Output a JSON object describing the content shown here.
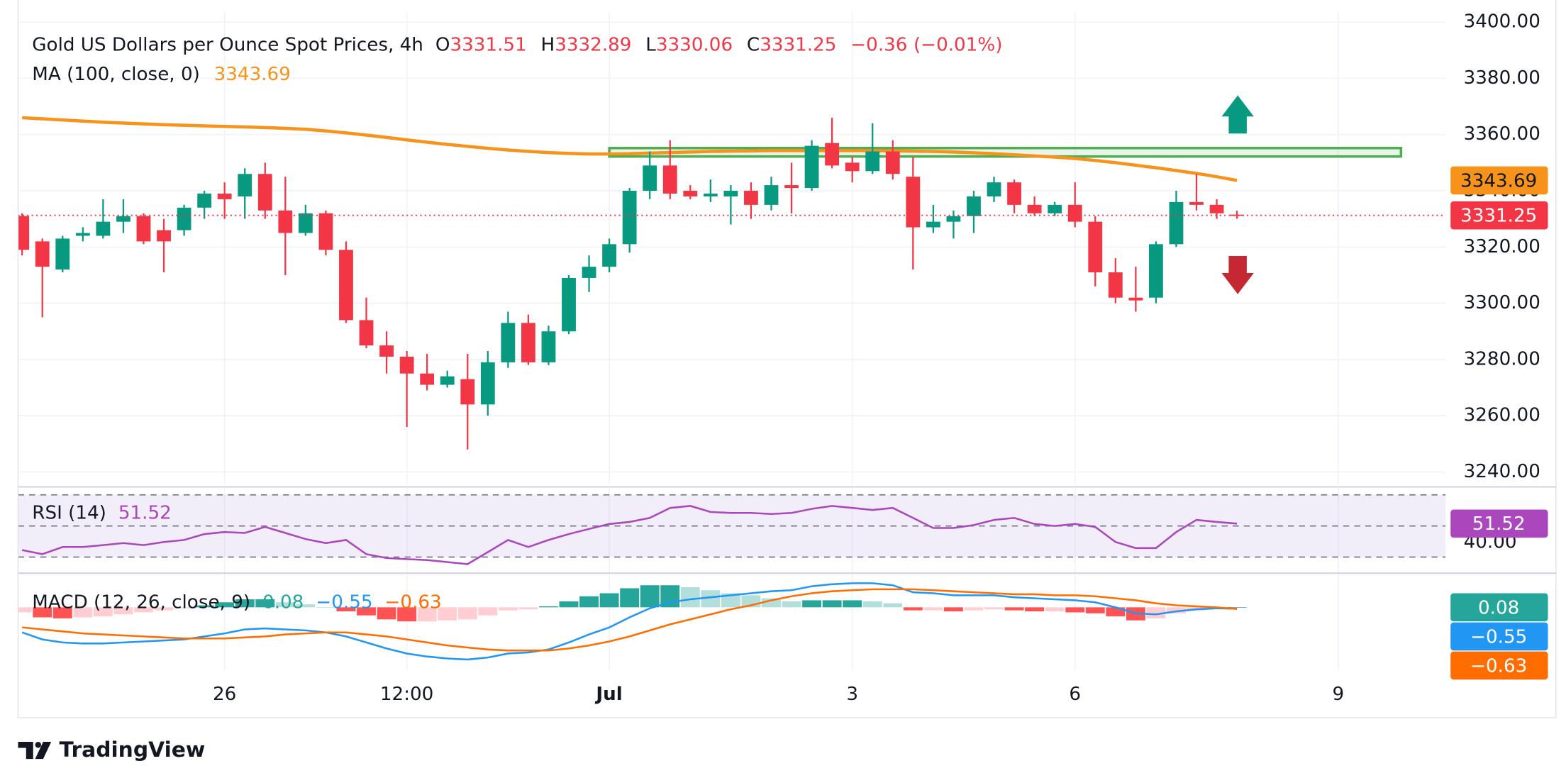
{
  "chart_data": [
    {
      "type": "candlestick",
      "title": "Gold US Dollars per Ounce Spot Prices, 4h",
      "ohlc_letters": [
        "O",
        "H",
        "L",
        "C"
      ],
      "change": {
        "value": -0.36,
        "label": "−0.36"
      },
      "change_percent": {
        "value": -0.01,
        "label": "(−0.01%)"
      },
      "xlim": [
        -0.2,
        70.3
      ],
      "xticks": [
        {
          "value": 10,
          "label": "26"
        },
        {
          "value": 19,
          "label": "12:00"
        },
        {
          "value": 29,
          "label": "Jul",
          "bold": true
        },
        {
          "value": 41,
          "label": "3"
        },
        {
          "value": 52,
          "label": "6"
        },
        {
          "value": 65,
          "label": "9"
        }
      ],
      "ylim": [
        3235.4,
        3402.5
      ],
      "yticks": [
        {
          "value": 3240,
          "label": "3240.00"
        },
        {
          "value": 3260,
          "label": "3260.00"
        },
        {
          "value": 3280,
          "label": "3280.00"
        },
        {
          "value": 3300,
          "label": "3300.00"
        },
        {
          "value": 3320,
          "label": "3320.00"
        },
        {
          "value": 3340,
          "label": "3340.00"
        },
        {
          "value": 3360,
          "label": "3360.00"
        },
        {
          "value": 3380,
          "label": "3380.00"
        },
        {
          "value": 3400,
          "label": "3400.00"
        }
      ],
      "grid": true,
      "candles": {
        "up_color": "#089981",
        "down_color": "#f23645",
        "open": [
          3331,
          3322,
          3312,
          3324,
          3324,
          3329,
          3331,
          3326,
          3326,
          3334,
          3339,
          3338,
          3346,
          3333,
          3325,
          3332,
          3319,
          3294,
          3285,
          3281,
          3275,
          3271,
          3273,
          3264,
          3279,
          3293,
          3279,
          3290,
          3309,
          3313,
          3321,
          3340,
          3349,
          3340,
          3338,
          3338,
          3340,
          3335,
          3342,
          3341,
          3357,
          3350,
          3347,
          3354,
          3345,
          3327,
          3329,
          3331,
          3338,
          3343,
          3335,
          3332,
          3335,
          3329,
          3311,
          3302,
          3302,
          3321,
          3336,
          3335,
          3331.51
        ],
        "high": [
          3332,
          3323,
          3324,
          3327,
          3337,
          3337,
          3332,
          3330,
          3335,
          3340,
          3343,
          3348,
          3350,
          3345,
          3335,
          3333,
          3322,
          3302,
          3290,
          3283,
          3282,
          3276,
          3282,
          3283,
          3297,
          3296,
          3292,
          3310,
          3317,
          3323,
          3341,
          3354,
          3358,
          3342,
          3344,
          3342,
          3343,
          3345,
          3350,
          3358,
          3366,
          3352,
          3364,
          3358,
          3352,
          3335,
          3333,
          3340,
          3345,
          3344,
          3338,
          3336,
          3343,
          3331,
          3316,
          3313,
          3322,
          3340,
          3346,
          3337,
          3332.89
        ],
        "low": [
          3317,
          3295,
          3311,
          3322,
          3323,
          3325,
          3321,
          3311,
          3324,
          3330,
          3330,
          3330,
          3330,
          3310,
          3324,
          3317,
          3293,
          3284,
          3275,
          3256,
          3269,
          3270,
          3248,
          3260,
          3277,
          3278,
          3278,
          3289,
          3304,
          3311,
          3318,
          3337,
          3337,
          3337,
          3336,
          3328,
          3330,
          3333,
          3332,
          3340,
          3348,
          3343,
          3346,
          3344,
          3312,
          3325,
          3323,
          3325,
          3336,
          3332,
          3331,
          3331,
          3327,
          3306,
          3300,
          3297,
          3300,
          3320,
          3333,
          3330,
          3330.06
        ],
        "close": [
          3319,
          3313,
          3323,
          3325,
          3329,
          3331,
          3322,
          3322,
          3334,
          3339,
          3337,
          3346,
          3333,
          3325,
          3332,
          3319,
          3294,
          3285,
          3281,
          3275,
          3271,
          3274,
          3264,
          3279,
          3293,
          3279,
          3290,
          3309,
          3313,
          3321,
          3340,
          3349,
          3339,
          3338,
          3339,
          3340,
          3335,
          3342,
          3341,
          3356,
          3349,
          3347,
          3354,
          3346,
          3327,
          3329,
          3331,
          3338,
          3343,
          3335,
          3332,
          3335,
          3329,
          3311,
          3302,
          3301,
          3321,
          3336,
          3335,
          3332,
          3331.25
        ]
      },
      "overlays": [
        {
          "name": "MA (100, close, 0)",
          "color": "#f7931a",
          "values": [
            3366,
            3365.6,
            3365.2,
            3364.8,
            3364.4,
            3364.1,
            3363.8,
            3363.5,
            3363.3,
            3363.1,
            3362.9,
            3362.7,
            3362.5,
            3362.2,
            3361.9,
            3361.3,
            3360.6,
            3359.8,
            3359,
            3358.1,
            3357.3,
            3356.5,
            3355.8,
            3355.1,
            3354.5,
            3354,
            3353.6,
            3353.3,
            3353.1,
            3353.1,
            3353.2,
            3353.4,
            3353.6,
            3353.8,
            3354,
            3354.1,
            3354.2,
            3354.3,
            3354.3,
            3354.3,
            3354.3,
            3354.3,
            3354.3,
            3354.2,
            3354.1,
            3354,
            3353.8,
            3353.5,
            3353.2,
            3352.8,
            3352.4,
            3352,
            3351.5,
            3350.8,
            3350,
            3349.1,
            3348.2,
            3347.2,
            3346.2,
            3345,
            3343.69
          ]
        }
      ],
      "zone": {
        "x": [
          29,
          68.1
        ],
        "y": [
          3352.2,
          3355.2
        ],
        "color": "#4caf50"
      },
      "last_price_line": true
    },
    {
      "type": "line",
      "name": "RSI (14)",
      "ylim": [
        20.3,
        73.2
      ],
      "yticks": [
        {
          "value": 40,
          "label": "40.00"
        }
      ],
      "bands": [
        30,
        50,
        70
      ],
      "band_color": "#7e57c2",
      "series": [
        {
          "color": "#ab47bc",
          "values": [
            34.5,
            31.9,
            36.5,
            36.5,
            37.7,
            39.0,
            37.7,
            39.7,
            41.0,
            44.8,
            46.1,
            45.5,
            49.4,
            45.5,
            41.6,
            39.0,
            41.0,
            31.9,
            29.4,
            28.7,
            28.1,
            26.8,
            25.5,
            33.2,
            41.0,
            36.5,
            41.0,
            44.8,
            48.1,
            51.3,
            52.6,
            55.2,
            61.6,
            62.9,
            59.0,
            58.4,
            58.4,
            57.7,
            58.4,
            61.0,
            62.9,
            61.6,
            60.3,
            61.6,
            55.2,
            48.7,
            48.7,
            50.6,
            53.9,
            55.2,
            51.3,
            50.0,
            51.3,
            49.4,
            39.7,
            35.8,
            35.8,
            46.1,
            53.9,
            52.6,
            51.52
          ]
        }
      ]
    },
    {
      "type": "macd",
      "name": "MACD (12, 26, close, 9)",
      "ylim": [
        -25.2,
        12.8
      ],
      "series": [
        {
          "kind": "histogram",
          "color": "#26a69a",
          "colors": {
            "up_rising": "#26a69a",
            "up_falling": "#b2dfdb",
            "down_rising": "#ffcdd2",
            "down_falling": "#ff5252"
          },
          "values": [
            -2,
            -4,
            -4.4,
            -4,
            -3.6,
            -2.8,
            -2,
            -1.2,
            -0.4,
            0.8,
            2,
            3.2,
            3.2,
            2,
            1.2,
            0,
            -1.6,
            -3.2,
            -4.8,
            -5.6,
            -5.6,
            -5.2,
            -4.8,
            -3.2,
            -1.2,
            -0.8,
            0.4,
            2.4,
            4.4,
            5.6,
            7.6,
            8.8,
            8.8,
            8,
            6.8,
            5.6,
            4.8,
            3.6,
            2.4,
            2.8,
            2.8,
            2.8,
            2.4,
            1.6,
            -1.2,
            -1.2,
            -1.6,
            -1.2,
            -0.8,
            -1.2,
            -1.6,
            -1.6,
            -2,
            -2.4,
            -3.6,
            -5.2,
            -4.4,
            -2.4,
            -1.2,
            -0.4,
            0.08
          ]
        },
        {
          "kind": "line",
          "color": "#2196f3",
          "values": [
            -10,
            -12.8,
            -14,
            -14.4,
            -14.4,
            -14,
            -13.6,
            -13.2,
            -12.8,
            -11.6,
            -10.4,
            -8.8,
            -8.4,
            -8.8,
            -9.2,
            -10,
            -11.6,
            -14,
            -16.4,
            -18.4,
            -19.6,
            -20.4,
            -20.8,
            -20,
            -18.4,
            -18,
            -16.8,
            -14,
            -10.8,
            -8,
            -4,
            -0.4,
            2,
            3.2,
            4,
            4.8,
            5.6,
            6.4,
            6.8,
            8.4,
            9.2,
            9.6,
            9.6,
            8.8,
            6,
            5.6,
            4.8,
            4.8,
            4.8,
            4,
            3.6,
            3.2,
            2.8,
            2,
            0,
            -2.4,
            -2.8,
            -1.6,
            -0.8,
            -0.4,
            -0.55
          ],
          "value_labels": {
            "60": "−0.55"
          }
        },
        {
          "kind": "line",
          "color": "#ff6d00",
          "values": [
            -8,
            -8.8,
            -9.6,
            -10.4,
            -10.8,
            -11.2,
            -11.6,
            -12,
            -12.4,
            -12.4,
            -12.4,
            -12,
            -11.6,
            -10.8,
            -10.4,
            -10,
            -10,
            -10.8,
            -11.6,
            -12.8,
            -14,
            -15.2,
            -16,
            -16.8,
            -17.2,
            -17.2,
            -17.2,
            -16.4,
            -15.2,
            -13.6,
            -11.6,
            -9.2,
            -6.8,
            -4.8,
            -2.8,
            -0.8,
            0.8,
            2.8,
            4.4,
            5.6,
            6.4,
            6.8,
            7.2,
            7.2,
            7.2,
            6.8,
            6.4,
            6,
            5.6,
            5.2,
            5.2,
            4.8,
            4.8,
            4.4,
            3.6,
            2.8,
            1.6,
            0.8,
            0.4,
            0,
            -0.63
          ],
          "value_labels": {
            "60": "−0.63"
          }
        }
      ]
    }
  ],
  "brand": "TradingView"
}
